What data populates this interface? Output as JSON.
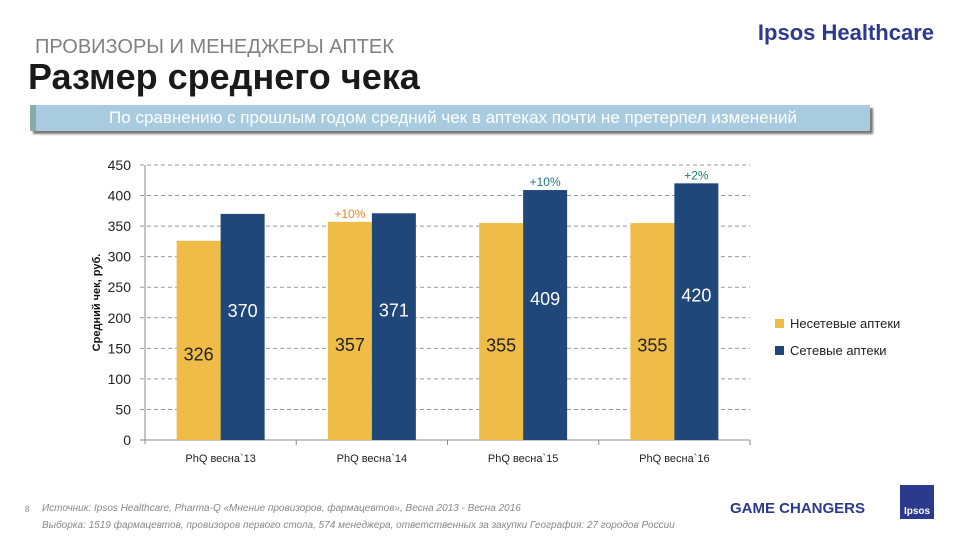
{
  "header": {
    "supertitle": "ПРОВИЗОРЫ И МЕНЕДЖЕРЫ АПТЕК",
    "title": "Размер среднего чека",
    "brand": "Ipsos Healthcare",
    "banner": "По сравнению  с прошлым годом средний чек в аптеках почти не претерпел изменений"
  },
  "footer": {
    "page": "8",
    "source": "Источник: Ipsos Healthcare, Pharma-Q «Мнение провизоров, фармацевтов», Весна 2013 - Весна 2016",
    "sample": "Выборка:  1519 фармацевтов, провизоров первого стола, 574 менеджера, ответственных за закупки  География:  27 городов  России",
    "tagline": "GAME CHANGERS",
    "logo": "Ipsos"
  },
  "chart_data": {
    "type": "bar",
    "ylabel": "Средний чек, руб.",
    "ylim": [
      0,
      450
    ],
    "yticks": [
      0,
      50,
      100,
      150,
      200,
      250,
      300,
      350,
      400,
      450
    ],
    "grid": true,
    "legend_position": "right",
    "categories": [
      "PhQ весна`13",
      "PhQ весна`14",
      "PhQ весна`15",
      "PhQ весна`16"
    ],
    "series": [
      {
        "name": "Несетевые аптеки",
        "color": "#f0bc48",
        "values": [
          326,
          357,
          355,
          355
        ],
        "annotations": [
          "",
          "+10%",
          "",
          ""
        ],
        "annotation_color": "#e8862a"
      },
      {
        "name": "Сетевые аптеки",
        "color": "#1f477a",
        "values": [
          370,
          371,
          409,
          420
        ],
        "annotations": [
          "",
          "",
          "+10%",
          "+2%"
        ],
        "annotation_color": "#1f7a7a"
      }
    ]
  }
}
